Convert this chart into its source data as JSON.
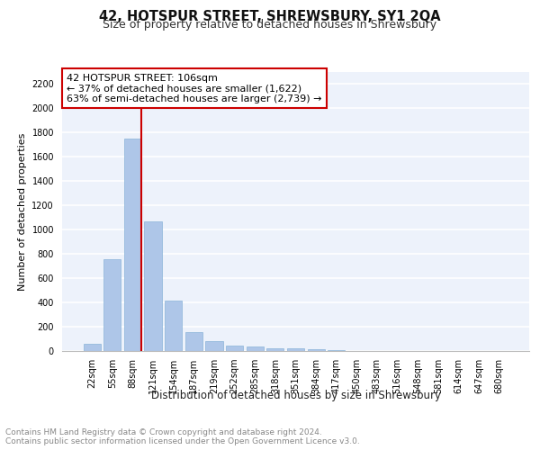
{
  "title": "42, HOTSPUR STREET, SHREWSBURY, SY1 2QA",
  "subtitle": "Size of property relative to detached houses in Shrewsbury",
  "xlabel": "Distribution of detached houses by size in Shrewsbury",
  "ylabel": "Number of detached properties",
  "bar_labels": [
    "22sqm",
    "55sqm",
    "88sqm",
    "121sqm",
    "154sqm",
    "187sqm",
    "219sqm",
    "252sqm",
    "285sqm",
    "318sqm",
    "351sqm",
    "384sqm",
    "417sqm",
    "450sqm",
    "483sqm",
    "516sqm",
    "548sqm",
    "581sqm",
    "614sqm",
    "647sqm",
    "680sqm"
  ],
  "bar_values": [
    60,
    760,
    1750,
    1070,
    415,
    155,
    80,
    45,
    38,
    25,
    25,
    15,
    10,
    0,
    0,
    0,
    0,
    0,
    0,
    0,
    0
  ],
  "bar_color": "#aec6e8",
  "bar_edge_color": "#8ab4d8",
  "vline_color": "#cc0000",
  "annotation_text": "42 HOTSPUR STREET: 106sqm\n← 37% of detached houses are smaller (1,622)\n63% of semi-detached houses are larger (2,739) →",
  "annotation_box_color": "#ffffff",
  "annotation_box_edge_color": "#cc0000",
  "ylim": [
    0,
    2300
  ],
  "yticks": [
    0,
    200,
    400,
    600,
    800,
    1000,
    1200,
    1400,
    1600,
    1800,
    2000,
    2200
  ],
  "bg_color": "#edf2fb",
  "grid_color": "#ffffff",
  "footer_text": "Contains HM Land Registry data © Crown copyright and database right 2024.\nContains public sector information licensed under the Open Government Licence v3.0.",
  "title_fontsize": 10.5,
  "subtitle_fontsize": 9,
  "xlabel_fontsize": 8.5,
  "ylabel_fontsize": 8,
  "tick_fontsize": 7,
  "annotation_fontsize": 8,
  "footer_fontsize": 6.5
}
